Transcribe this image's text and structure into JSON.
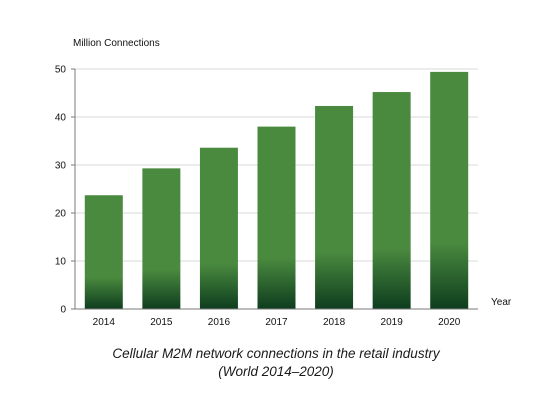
{
  "chart_data": {
    "type": "bar",
    "ylabel": "Million Connections",
    "xlabel": "Year",
    "categories": [
      "2014",
      "2015",
      "2016",
      "2017",
      "2018",
      "2019",
      "2020"
    ],
    "values": [
      23.7,
      29.3,
      33.6,
      38.0,
      42.3,
      45.2,
      49.4
    ],
    "ylim": [
      0,
      50
    ],
    "yticks": [
      0,
      10,
      20,
      30,
      40,
      50
    ],
    "grid": true,
    "legend": "none",
    "colors": {
      "bar_top": "#4a8a3f",
      "bar_bottom": "#0e3d1e",
      "grid": "#d9d9d9",
      "axis": "#7a7a7a"
    }
  },
  "caption": {
    "line1": "Cellular M2M network connections in the retail industry",
    "line2": "(World 2014–2020)"
  }
}
